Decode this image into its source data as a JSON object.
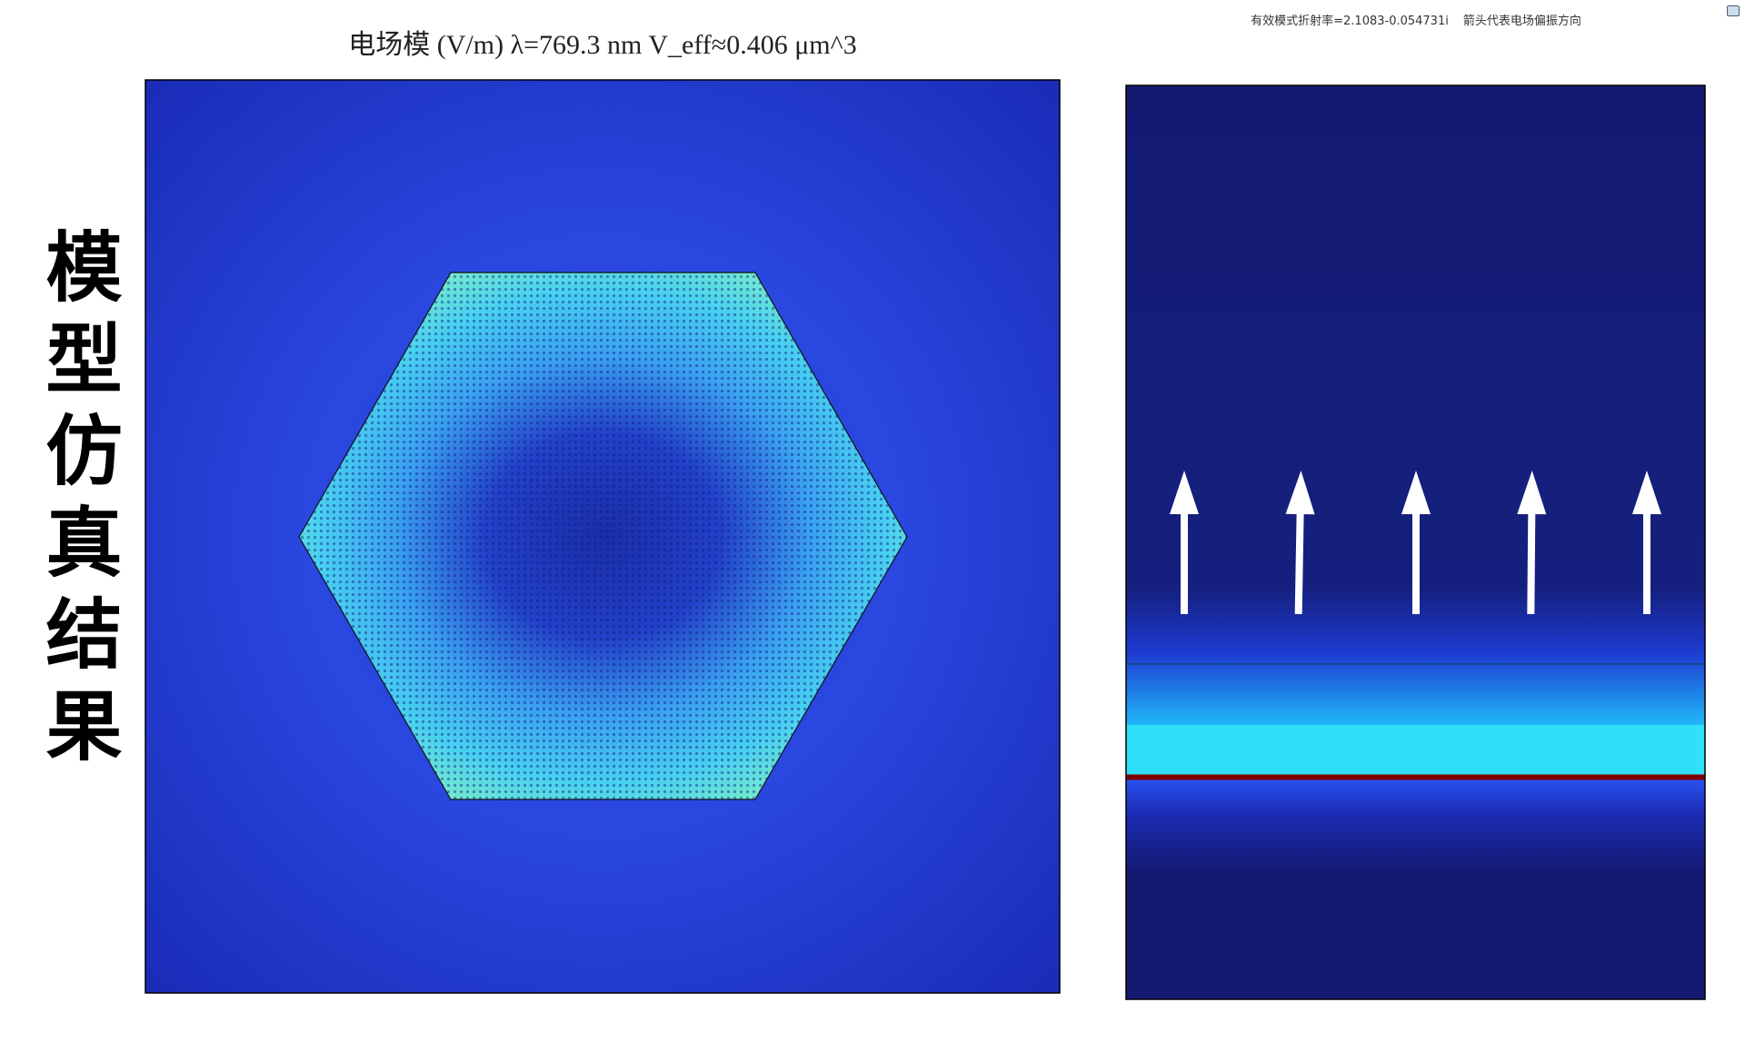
{
  "header": {
    "title": "电场模 (V/m) λ=769.3 nm V_eff≈0.406 μm^3",
    "mode_info": "有效模式折射率=2.1083-0.054731i",
    "arrow_note": "箭头代表电场偏振方向"
  },
  "side_label": "模型仿真结果"
}
